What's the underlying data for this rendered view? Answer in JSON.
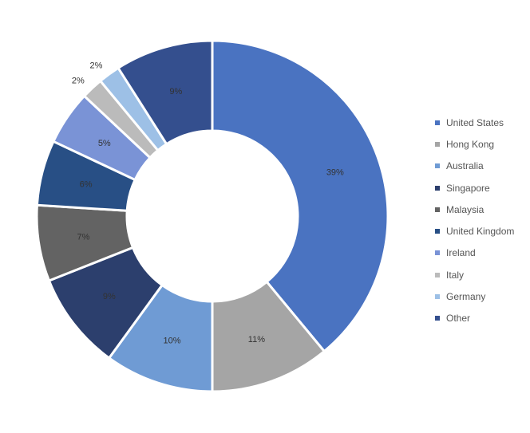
{
  "chart_data": {
    "type": "pie",
    "style": "donut",
    "title": "",
    "legend_position": "right",
    "labels_inside": true,
    "slices": [
      {
        "label": "United States",
        "value": 39,
        "value_label": "39%",
        "color": "#4a73c1"
      },
      {
        "label": "Hong Kong",
        "value": 11,
        "value_label": "11%",
        "color": "#a5a5a5"
      },
      {
        "label": "Australia",
        "value": 10,
        "value_label": "10%",
        "color": "#6f9bd4"
      },
      {
        "label": "Singapore",
        "value": 9,
        "value_label": "9%",
        "color": "#2c3f6d"
      },
      {
        "label": "Malaysia",
        "value": 7,
        "value_label": "7%",
        "color": "#636363"
      },
      {
        "label": "United Kingdom",
        "value": 6,
        "value_label": "6%",
        "color": "#284f85"
      },
      {
        "label": "Ireland",
        "value": 5,
        "value_label": "5%",
        "color": "#7a93d6"
      },
      {
        "label": "Italy",
        "value": 2,
        "value_label": "2%",
        "color": "#bbbbbb"
      },
      {
        "label": "Germany",
        "value": 2,
        "value_label": "2%",
        "color": "#9dc0e6"
      },
      {
        "label": "Other",
        "value": 9,
        "value_label": "9%",
        "color": "#344f8e"
      }
    ]
  }
}
